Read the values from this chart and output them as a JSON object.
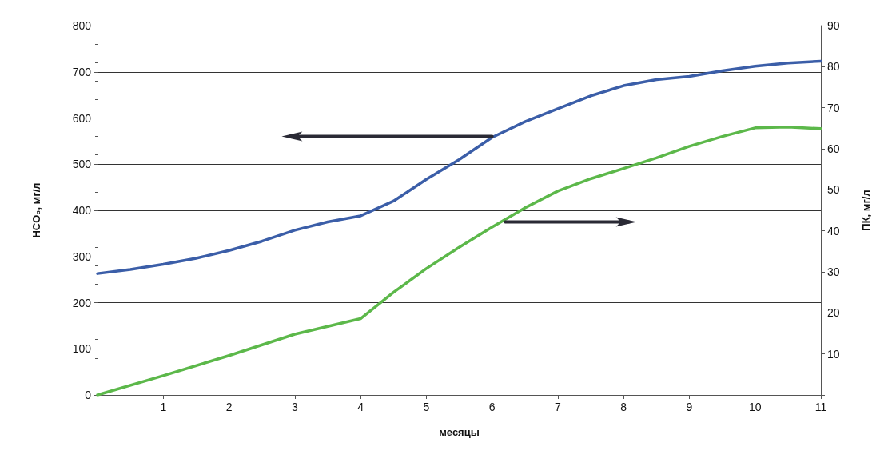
{
  "chart_data": {
    "type": "line",
    "xlabel": "месяцы",
    "ylabel": "HCO₃, мг/л",
    "y2label": "ПК, мг/л",
    "xlim": [
      0,
      11
    ],
    "xticks": [
      {
        "value": 0,
        "label": null
      },
      1,
      2,
      3,
      4,
      5,
      6,
      7,
      8,
      9,
      10,
      11
    ],
    "ylim": [
      0,
      800
    ],
    "yticks": [
      0,
      100,
      200,
      300,
      400,
      500,
      600,
      700,
      800
    ],
    "y2lim": [
      0,
      90
    ],
    "y2ticks": [
      {
        "value": 0,
        "label": null
      },
      10,
      20,
      30,
      40,
      50,
      60,
      70,
      80,
      90
    ],
    "grid": "y",
    "marker": "none",
    "line_style": "solid",
    "series": [
      {
        "color": "#3b5ea8",
        "x": [
          0,
          0.5,
          1,
          1.5,
          2,
          2.5,
          3,
          3.5,
          4,
          4.5,
          5,
          5.5,
          6,
          6.5,
          7,
          7.5,
          8,
          8.5,
          9,
          9.5,
          10,
          10.5,
          11
        ],
        "values": [
          263,
          272,
          283,
          296,
          313,
          333,
          357,
          375,
          388,
          420,
          467,
          510,
          558,
          592,
          620,
          648,
          670,
          683,
          690,
          702,
          712,
          719,
          723
        ]
      },
      {
        "color": "#5cb84a",
        "axis": "y2",
        "x": [
          0,
          1,
          2,
          3,
          4,
          4.5,
          5,
          5.5,
          6,
          6.5,
          7,
          7.5,
          8,
          8.5,
          9,
          9.5,
          10,
          10.5,
          11
        ],
        "values": [
          0,
          4.7,
          9.6,
          14.8,
          18.6,
          25,
          30.8,
          36,
          40.9,
          45.6,
          49.7,
          52.7,
          55.2,
          57.8,
          60.6,
          63,
          65.1,
          65.3,
          64.9
        ]
      }
    ]
  }
}
